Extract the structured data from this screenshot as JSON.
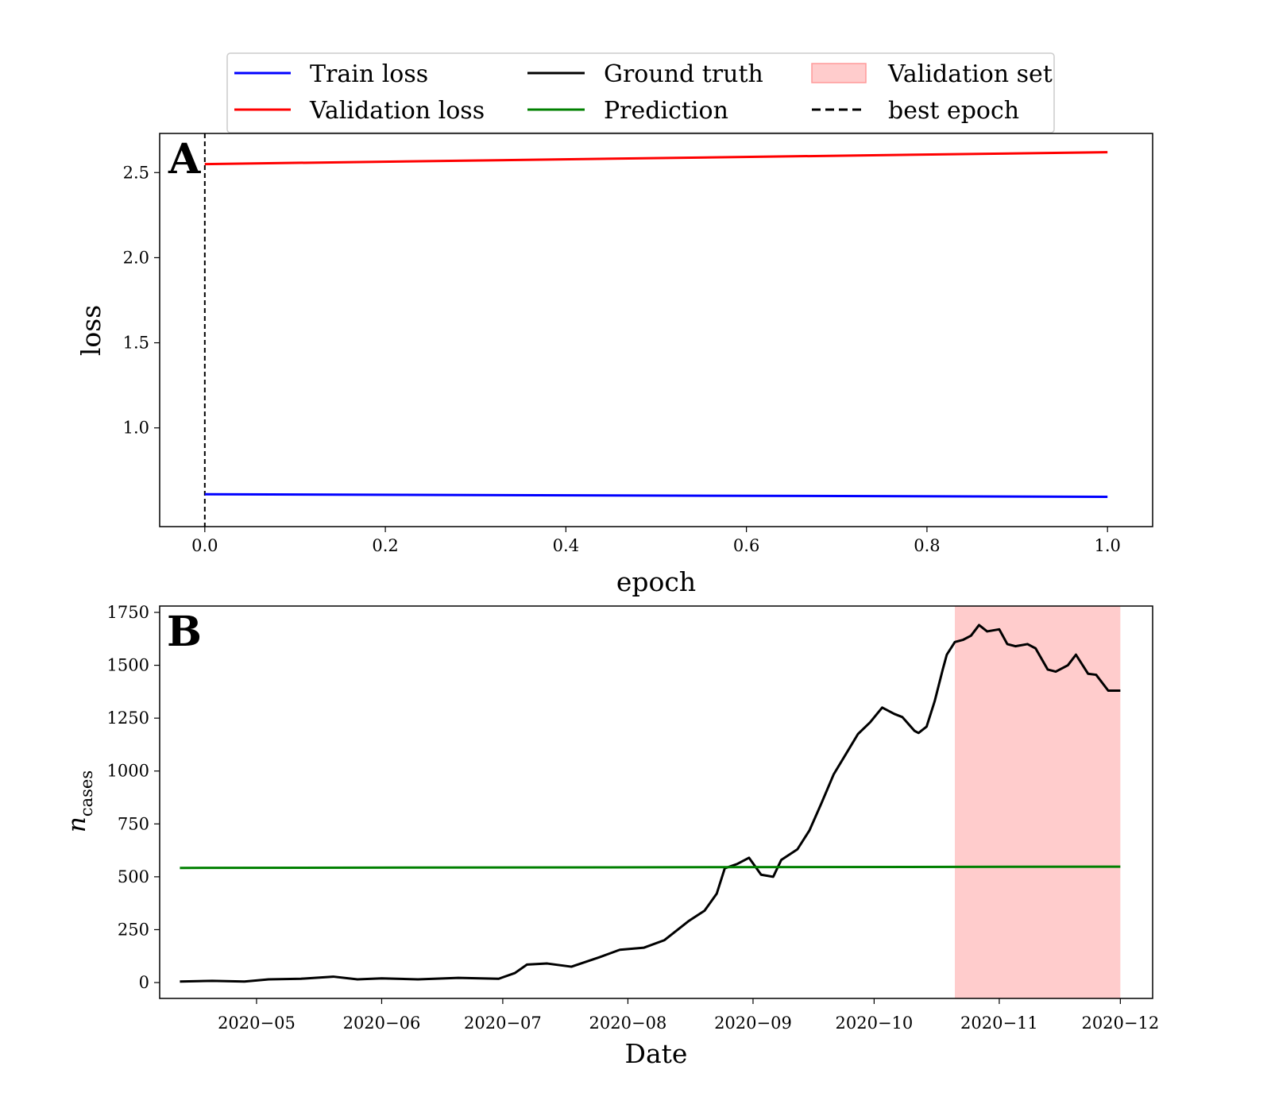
{
  "legend": {
    "placement": "top-center",
    "items": [
      {
        "label": "Train loss",
        "kind": "line",
        "color": "#0000ff"
      },
      {
        "label": "Validation loss",
        "kind": "line",
        "color": "#ff0000"
      },
      {
        "label": "Ground truth",
        "kind": "line",
        "color": "#000000"
      },
      {
        "label": "Prediction",
        "kind": "line",
        "color": "#008000"
      },
      {
        "label": "Validation set",
        "kind": "patch",
        "color": "#ffcccc"
      },
      {
        "label": "best epoch",
        "kind": "dashed",
        "color": "#000000"
      }
    ]
  },
  "chart_data": [
    {
      "panel": "A",
      "type": "line",
      "xlabel": "epoch",
      "ylabel": "loss",
      "xlim": [
        -0.05,
        1.05
      ],
      "ylim": [
        0.42,
        2.73
      ],
      "xticks": [
        0.0,
        0.2,
        0.4,
        0.6,
        0.8,
        1.0
      ],
      "xtick_labels": [
        "0.0",
        "0.2",
        "0.4",
        "0.6",
        "0.8",
        "1.0"
      ],
      "yticks": [
        1.0,
        1.5,
        2.0,
        2.5
      ],
      "ytick_labels": [
        "1.0",
        "1.5",
        "2.0",
        "2.5"
      ],
      "grid": false,
      "series": [
        {
          "name": "Train loss",
          "color": "#0000ff",
          "x": [
            0.0,
            1.0
          ],
          "y": [
            0.61,
            0.595
          ]
        },
        {
          "name": "Validation loss",
          "color": "#ff0000",
          "x": [
            0.0,
            1.0
          ],
          "y": [
            2.55,
            2.62
          ]
        }
      ],
      "vline": {
        "name": "best epoch",
        "x": 0.0,
        "style": "dashed",
        "color": "#000000"
      }
    },
    {
      "panel": "B",
      "type": "line",
      "xlabel": "Date",
      "ylabel": "n_cases",
      "xlim": [
        "2020-04-07",
        "2020-12-09"
      ],
      "ylim": [
        -75,
        1780
      ],
      "xticks": [
        "2020-05-01",
        "2020-06-01",
        "2020-07-01",
        "2020-08-01",
        "2020-09-01",
        "2020-10-01",
        "2020-11-01",
        "2020-12-01"
      ],
      "xtick_labels": [
        "2020−05",
        "2020−06",
        "2020−07",
        "2020−08",
        "2020−09",
        "2020−10",
        "2020−11",
        "2020−12"
      ],
      "yticks": [
        0,
        250,
        500,
        750,
        1000,
        1250,
        1500,
        1750
      ],
      "ytick_labels": [
        "0",
        "250",
        "500",
        "750",
        "1000",
        "1250",
        "1500",
        "1750"
      ],
      "grid": false,
      "shaded_region": {
        "name": "Validation set",
        "x": [
          "2020-10-21",
          "2020-12-01"
        ],
        "color": "#ffcccc"
      },
      "series": [
        {
          "name": "Ground truth",
          "color": "#000000",
          "x": [
            "2020-04-12",
            "2020-04-20",
            "2020-04-28",
            "2020-05-04",
            "2020-05-12",
            "2020-05-20",
            "2020-05-26",
            "2020-06-01",
            "2020-06-10",
            "2020-06-20",
            "2020-06-30",
            "2020-07-04",
            "2020-07-07",
            "2020-07-12",
            "2020-07-18",
            "2020-07-25",
            "2020-07-30",
            "2020-08-05",
            "2020-08-10",
            "2020-08-14",
            "2020-08-16",
            "2020-08-20",
            "2020-08-23",
            "2020-08-25",
            "2020-08-28",
            "2020-08-31",
            "2020-09-03",
            "2020-09-06",
            "2020-09-08",
            "2020-09-12",
            "2020-09-15",
            "2020-09-18",
            "2020-09-21",
            "2020-09-24",
            "2020-09-27",
            "2020-09-30",
            "2020-10-03",
            "2020-10-06",
            "2020-10-08",
            "2020-10-11",
            "2020-10-12",
            "2020-10-14",
            "2020-10-16",
            "2020-10-18",
            "2020-10-19",
            "2020-10-21",
            "2020-10-23",
            "2020-10-25",
            "2020-10-27",
            "2020-10-29",
            "2020-11-01",
            "2020-11-03",
            "2020-11-05",
            "2020-11-08",
            "2020-11-10",
            "2020-11-13",
            "2020-11-15",
            "2020-11-18",
            "2020-11-20",
            "2020-11-23",
            "2020-11-25",
            "2020-11-28",
            "2020-12-01"
          ],
          "y": [
            5,
            8,
            5,
            15,
            18,
            28,
            15,
            20,
            15,
            22,
            18,
            45,
            85,
            90,
            75,
            120,
            155,
            165,
            200,
            260,
            290,
            340,
            420,
            540,
            560,
            590,
            510,
            500,
            580,
            630,
            720,
            850,
            985,
            1080,
            1175,
            1230,
            1300,
            1270,
            1255,
            1190,
            1180,
            1210,
            1330,
            1480,
            1550,
            1610,
            1620,
            1640,
            1690,
            1660,
            1670,
            1600,
            1590,
            1600,
            1580,
            1480,
            1470,
            1500,
            1550,
            1460,
            1455,
            1380,
            1380
          ]
        },
        {
          "name": "Prediction",
          "color": "#008000",
          "x": [
            "2020-04-12",
            "2020-12-01"
          ],
          "y": [
            542,
            548
          ]
        }
      ]
    }
  ]
}
